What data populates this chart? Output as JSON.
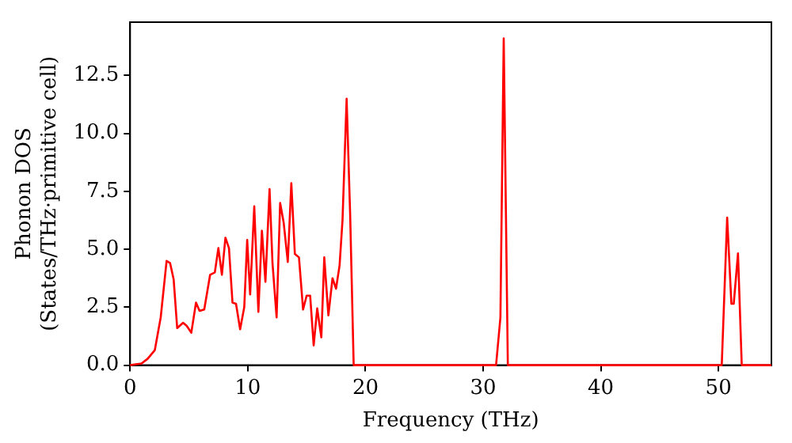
{
  "chart_data": {
    "type": "line",
    "xlabel": "Frequency (THz)",
    "ylabel": "Phonon DOS\n(States/THz·primitive cell)",
    "xlim": [
      0,
      54.5
    ],
    "xticks": [
      0,
      10,
      20,
      30,
      40,
      50
    ],
    "ylim": [
      0,
      14.8
    ],
    "yticks": [
      {
        "value": 0,
        "label": "0.0"
      },
      {
        "value": 2.5,
        "label": "2.5"
      },
      {
        "value": 5,
        "label": "5.0"
      },
      {
        "value": 7.5,
        "label": "7.5"
      },
      {
        "value": 10,
        "label": "10.0"
      },
      {
        "value": 12.5,
        "label": "12.5"
      }
    ],
    "grid": false,
    "legend": false,
    "marker": "none",
    "line_style": "solid",
    "series": [
      {
        "color": "#ff0000",
        "x": [
          0,
          0.97,
          1.5,
          2.1,
          2.6,
          3.1,
          3.4,
          3.7,
          4.0,
          4.5,
          4.8,
          5.2,
          5.6,
          5.9,
          6.3,
          6.8,
          7.2,
          7.5,
          7.8,
          8.1,
          8.4,
          8.7,
          9.0,
          9.35,
          9.7,
          9.95,
          10.2,
          10.55,
          10.9,
          11.2,
          11.5,
          11.85,
          12.1,
          12.45,
          12.75,
          13.05,
          13.4,
          13.7,
          14.0,
          14.35,
          14.7,
          15.0,
          15.3,
          15.6,
          15.9,
          16.25,
          16.5,
          16.85,
          17.2,
          17.5,
          17.8,
          18.05,
          18.4,
          18.7,
          19.0,
          31.1,
          31.47,
          31.75,
          32.1,
          50.28,
          50.74,
          51.1,
          51.3,
          51.66,
          51.98,
          54.5
        ],
        "values": [
          0,
          0.07,
          0.28,
          0.65,
          2.06,
          4.5,
          4.4,
          3.7,
          1.6,
          1.83,
          1.7,
          1.4,
          2.7,
          2.34,
          2.4,
          3.9,
          4.0,
          5.05,
          3.9,
          5.5,
          5.05,
          2.7,
          2.65,
          1.55,
          2.5,
          5.4,
          3.05,
          6.85,
          2.3,
          5.8,
          3.6,
          7.6,
          4.4,
          2.06,
          7.0,
          6.15,
          4.45,
          7.85,
          4.8,
          4.65,
          2.4,
          3.0,
          3.0,
          0.85,
          2.45,
          1.2,
          4.65,
          2.15,
          3.75,
          3.3,
          4.3,
          6.25,
          11.5,
          6.5,
          0,
          0,
          2.06,
          14.1,
          0,
          0,
          6.37,
          2.65,
          2.65,
          4.82,
          0,
          0
        ]
      }
    ]
  }
}
